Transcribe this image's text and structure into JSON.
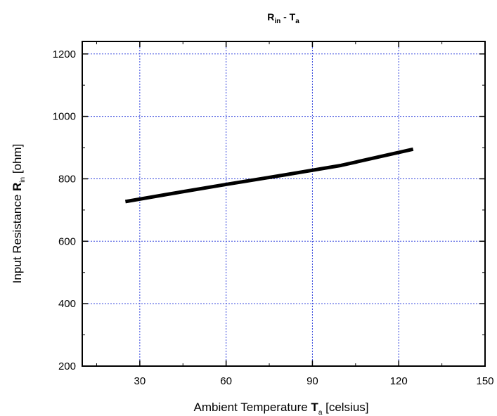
{
  "chart_data": {
    "type": "line",
    "title": {
      "main": "R",
      "main_sub": "in",
      "sep": " - ",
      "second": "T",
      "second_sub": "a"
    },
    "xlabel": {
      "prefix": "Ambient Temperature ",
      "sym": "T",
      "sub": "a",
      "suffix": " [celsius]"
    },
    "ylabel": {
      "prefix": "Input Resistance ",
      "sym": "R",
      "sub": "in",
      "suffix": " [ohm]"
    },
    "xlim": [
      10,
      150
    ],
    "ylim": [
      200,
      1240
    ],
    "xticks": [
      30,
      60,
      90,
      120,
      150
    ],
    "yticks": [
      200,
      400,
      600,
      800,
      1000,
      1200
    ],
    "grid": true,
    "series": [
      {
        "x": [
          25,
          40,
          60,
          80,
          100,
          125
        ],
        "y": [
          727,
          751,
          782,
          812,
          843,
          895
        ]
      }
    ]
  },
  "colors": {
    "line": "#000000",
    "grid": "#3344dd",
    "frame": "#000000"
  }
}
